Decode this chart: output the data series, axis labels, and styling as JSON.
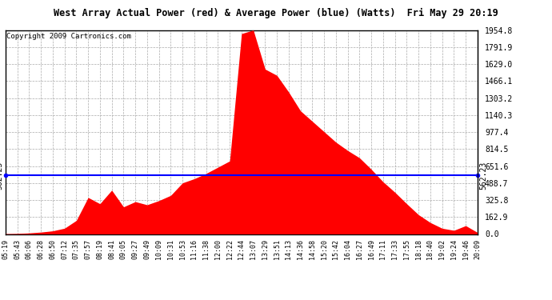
{
  "title": "West Array Actual Power (red) & Average Power (blue) (Watts)  Fri May 29 20:19",
  "copyright": "Copyright 2009 Cartronics.com",
  "average_power": 562.23,
  "y_max": 1954.8,
  "y_ticks": [
    0.0,
    162.9,
    325.8,
    488.7,
    651.6,
    814.5,
    977.4,
    1140.3,
    1303.2,
    1466.1,
    1629.0,
    1791.9,
    1954.8
  ],
  "x_labels": [
    "05:19",
    "05:43",
    "06:06",
    "06:28",
    "06:50",
    "07:12",
    "07:35",
    "07:57",
    "08:19",
    "08:41",
    "09:05",
    "09:27",
    "09:49",
    "10:09",
    "10:31",
    "10:53",
    "11:16",
    "11:38",
    "12:00",
    "12:22",
    "12:44",
    "13:07",
    "13:29",
    "13:51",
    "14:13",
    "14:36",
    "14:58",
    "15:20",
    "15:42",
    "16:04",
    "16:27",
    "16:49",
    "17:11",
    "17:33",
    "17:55",
    "18:18",
    "18:40",
    "19:02",
    "19:24",
    "19:46",
    "20:09"
  ],
  "bg_color": "#ffffff",
  "fill_color": "#ff0000",
  "avg_line_color": "#0000ff",
  "grid_color": "#aaaaaa",
  "title_bg": "#c0c0c0",
  "power_values": [
    3,
    5,
    10,
    18,
    30,
    55,
    130,
    350,
    290,
    420,
    260,
    310,
    280,
    320,
    370,
    490,
    530,
    580,
    640,
    700,
    1920,
    1954,
    1580,
    1520,
    1360,
    1180,
    1080,
    980,
    880,
    800,
    730,
    620,
    500,
    400,
    290,
    185,
    110,
    55,
    35,
    80,
    15
  ]
}
